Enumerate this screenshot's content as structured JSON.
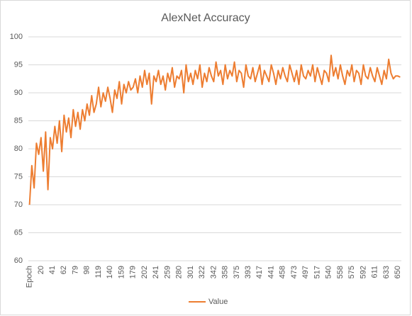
{
  "chart_data": {
    "type": "line",
    "title": "AlexNet Accuracy",
    "categories": [
      "Epoch",
      null,
      null,
      null,
      null,
      "20",
      null,
      null,
      null,
      null,
      "41",
      null,
      null,
      null,
      null,
      "62",
      null,
      null,
      null,
      null,
      "79",
      null,
      null,
      null,
      null,
      "98",
      null,
      null,
      null,
      null,
      "119",
      null,
      null,
      null,
      null,
      "140",
      null,
      null,
      null,
      null,
      "159",
      null,
      null,
      null,
      null,
      "179",
      null,
      null,
      null,
      null,
      "202",
      null,
      null,
      null,
      null,
      "241",
      null,
      null,
      null,
      null,
      "259",
      null,
      null,
      null,
      null,
      "280",
      null,
      null,
      null,
      null,
      "301",
      null,
      null,
      null,
      null,
      "322",
      null,
      null,
      null,
      null,
      "342",
      null,
      null,
      null,
      null,
      "358",
      null,
      null,
      null,
      null,
      "375",
      null,
      null,
      null,
      null,
      "393",
      null,
      null,
      null,
      null,
      "417",
      null,
      null,
      null,
      null,
      "441",
      null,
      null,
      null,
      null,
      "458",
      null,
      null,
      null,
      null,
      "473",
      null,
      null,
      null,
      null,
      "497",
      null,
      null,
      null,
      null,
      "517",
      null,
      null,
      null,
      null,
      "540",
      null,
      null,
      null,
      null,
      "558",
      null,
      null,
      null,
      null,
      "575",
      null,
      null,
      null,
      null,
      "592",
      null,
      null,
      null,
      null,
      "611",
      null,
      null,
      null,
      null,
      "633",
      null,
      null,
      null,
      null,
      "650",
      null
    ],
    "series": [
      {
        "name": "Value",
        "color": "#ed7d31",
        "values": [
          70,
          77,
          73,
          81,
          79,
          82,
          76,
          83,
          72.7,
          82,
          80,
          84,
          81,
          85,
          79.5,
          86,
          83,
          85.5,
          82,
          87,
          84,
          86.5,
          83.5,
          87,
          85,
          88,
          86,
          89.5,
          86.5,
          88,
          91,
          87.5,
          90,
          88.5,
          91,
          89,
          86.5,
          90.5,
          89,
          92,
          88,
          91.5,
          90,
          92,
          90.5,
          91,
          92.5,
          90,
          93,
          91,
          94,
          91.5,
          93.5,
          88,
          93,
          92,
          94,
          91.5,
          93,
          90.5,
          93.5,
          92,
          94.5,
          91,
          93,
          92.5,
          94,
          90,
          95,
          92,
          93.5,
          91.5,
          94,
          92.5,
          95,
          91,
          93.5,
          92,
          94.5,
          93,
          92,
          95.5,
          93,
          94,
          91.5,
          95,
          92.5,
          94,
          93,
          95.5,
          92,
          94,
          93.5,
          91,
          95,
          93,
          92.5,
          94.5,
          92,
          93.5,
          95,
          91.5,
          94,
          93,
          92,
          95,
          93.5,
          91.5,
          94,
          92.5,
          94.5,
          93,
          92,
          95,
          93.5,
          92,
          94,
          91.5,
          95,
          93,
          92.5,
          94,
          93,
          95,
          92,
          94.5,
          93,
          91.5,
          94,
          93.5,
          92,
          96.7,
          93,
          94.5,
          92.5,
          95,
          93,
          91.5,
          94,
          93,
          95,
          92,
          94,
          93.5,
          91.5,
          95,
          93,
          92.5,
          94.5,
          93,
          92,
          94.5,
          93,
          91.5,
          94,
          92.5,
          96,
          93.5,
          92.5,
          93,
          93,
          92.8
        ]
      }
    ],
    "ylim": [
      60,
      100
    ],
    "yticks": [
      60,
      65,
      70,
      75,
      80,
      85,
      90,
      95,
      100
    ],
    "grid": true,
    "legend": "bottom"
  }
}
